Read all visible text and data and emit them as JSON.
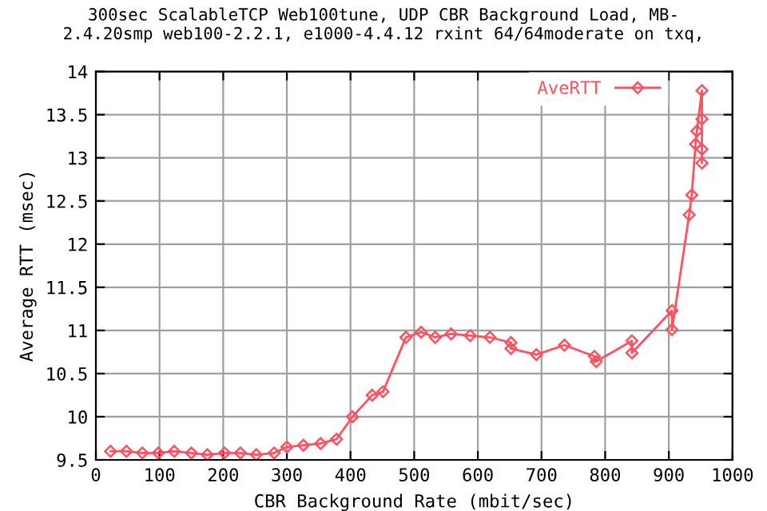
{
  "chart_data": {
    "type": "line",
    "title": "300sec ScalableTCP Web100tune, UDP CBR Background Load, MB-\n2.4.20smp web100-2.2.1, e1000-4.4.12 rxint 64/64moderate on txq,",
    "xlabel": "CBR Background Rate (mbit/sec)",
    "ylabel": "Average RTT (msec)",
    "series": [
      {
        "name": "AveRTT",
        "color": "#ff5060",
        "x": [
          23,
          48,
          73,
          98,
          123,
          150,
          175,
          202,
          227,
          252,
          280,
          300,
          326,
          353,
          378,
          403,
          434,
          451,
          487,
          511,
          533,
          558,
          588,
          619,
          652,
          652,
          692,
          736,
          783,
          786,
          842,
          842,
          905,
          905,
          932,
          936,
          942,
          944,
          952,
          952,
          952,
          952
        ],
        "values": [
          9.6,
          9.6,
          9.58,
          9.58,
          9.6,
          9.58,
          9.56,
          9.58,
          9.58,
          9.56,
          9.58,
          9.65,
          9.67,
          9.69,
          9.74,
          10.0,
          10.25,
          10.29,
          10.92,
          10.98,
          10.92,
          10.96,
          10.94,
          10.92,
          10.86,
          10.79,
          10.72,
          10.83,
          10.7,
          10.64,
          10.88,
          10.74,
          11.23,
          11.01,
          12.34,
          12.57,
          13.16,
          13.31,
          13.78,
          13.45,
          13.1,
          12.94
        ]
      }
    ],
    "xlim": [
      0,
      1000
    ],
    "xticks": [
      0,
      100,
      200,
      300,
      400,
      500,
      600,
      700,
      800,
      900,
      1000
    ],
    "ylim": [
      9.5,
      14
    ],
    "yticks": [
      9.5,
      10,
      10.5,
      11,
      11.5,
      12,
      12.5,
      13,
      13.5,
      14
    ],
    "grid": true,
    "legend": "top right",
    "marker": "diamond",
    "line_style": "solid"
  }
}
